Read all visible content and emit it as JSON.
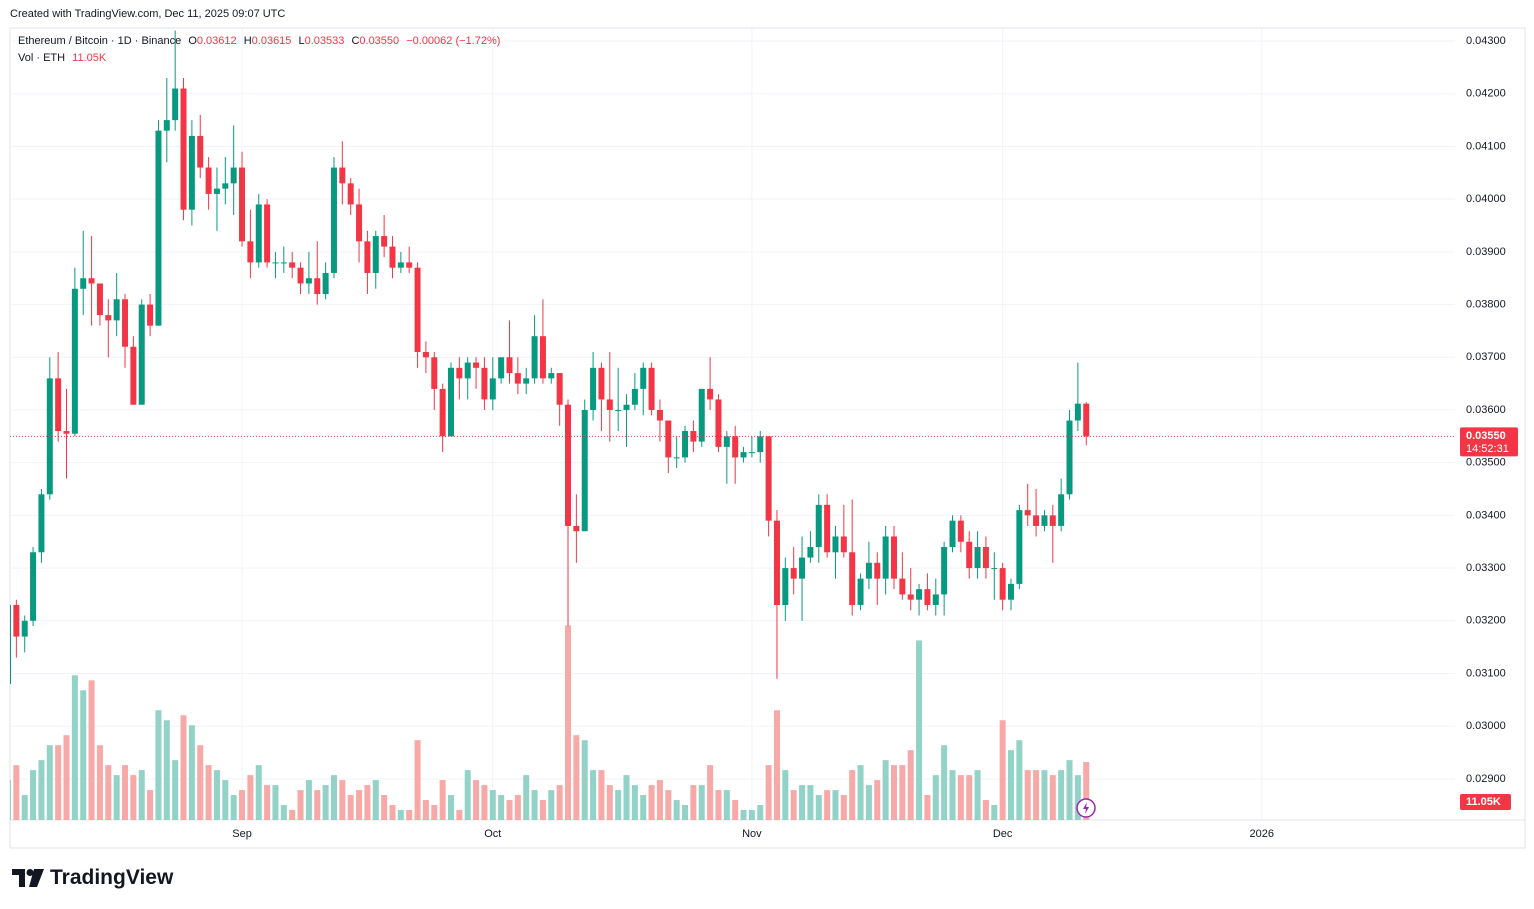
{
  "created": "Created with TradingView.com, Dec 11, 2025 09:07 UTC",
  "brand": "TradingView",
  "chart_data": {
    "type": "candlestick",
    "legend": {
      "symbol": "Ethereum / Bitcoin · 1D · Binance",
      "o_label": "O",
      "o": "0.03612",
      "h_label": "H",
      "h": "0.03615",
      "l_label": "L",
      "l": "0.03533",
      "c_label": "C",
      "c": "0.03550",
      "change": "−0.00062 (−1.72%)",
      "volume_title": "Vol · ETH"
    },
    "last_label": "0.03550",
    "countdown": "14:52:31",
    "volume_label": "11.05K",
    "up_color": "#089981",
    "down_color": "#f23645",
    "volume_up_color": "#92d2c7",
    "volume_down_color": "#f7a9a7",
    "grid": true,
    "xlim": [
      0,
      173
    ],
    "ylim": [
      0.02822,
      0.04321
    ],
    "volume_ylim": [
      0,
      40000
    ],
    "xticks": [
      {
        "value": 28,
        "label": "Sep"
      },
      {
        "value": 58,
        "label": "Oct"
      },
      {
        "value": 89,
        "label": "Nov"
      },
      {
        "value": 119,
        "label": "Dec"
      },
      {
        "value": 150,
        "label": "2026"
      }
    ],
    "yticks": [
      {
        "value": 0.029,
        "label": "0.02900"
      },
      {
        "value": 0.03,
        "label": "0.03000"
      },
      {
        "value": 0.031,
        "label": "0.03100"
      },
      {
        "value": 0.032,
        "label": "0.03200"
      },
      {
        "value": 0.033,
        "label": "0.03300"
      },
      {
        "value": 0.034,
        "label": "0.03400"
      },
      {
        "value": 0.035,
        "label": "0.03500"
      },
      {
        "value": 0.036,
        "label": "0.03600"
      },
      {
        "value": 0.037,
        "label": "0.03700"
      },
      {
        "value": 0.038,
        "label": "0.03800"
      },
      {
        "value": 0.039,
        "label": "0.03900"
      },
      {
        "value": 0.04,
        "label": "0.04000"
      },
      {
        "value": 0.041,
        "label": "0.04100"
      },
      {
        "value": 0.042,
        "label": "0.04200"
      },
      {
        "value": 0.043,
        "label": "0.04300"
      }
    ],
    "x": [
      0,
      1,
      2,
      3,
      4,
      5,
      6,
      7,
      8,
      9,
      10,
      11,
      12,
      13,
      14,
      15,
      16,
      17,
      18,
      19,
      20,
      21,
      22,
      23,
      24,
      25,
      26,
      27,
      28,
      29,
      30,
      31,
      32,
      33,
      34,
      35,
      36,
      37,
      38,
      39,
      40,
      41,
      42,
      43,
      44,
      45,
      46,
      47,
      48,
      49,
      50,
      51,
      52,
      53,
      54,
      55,
      56,
      57,
      58,
      59,
      60,
      61,
      62,
      63,
      64,
      65,
      66,
      67,
      68,
      69,
      70,
      71,
      72,
      73,
      74,
      75,
      76,
      77,
      78,
      79,
      80,
      81,
      82,
      83,
      84,
      85,
      86,
      87,
      88,
      89,
      90,
      91,
      92,
      93,
      94,
      95,
      96,
      97,
      98,
      99,
      100,
      101,
      102,
      103,
      104,
      105,
      106,
      107,
      108,
      109,
      110,
      111,
      112,
      113,
      114,
      115,
      116,
      117,
      118,
      119,
      120,
      121,
      122,
      123,
      124,
      125,
      126,
      127,
      128,
      129
    ],
    "open": [
      0.0308,
      0.0323,
      0.0317,
      0.032,
      0.0333,
      0.0344,
      0.0366,
      0.0356,
      0.03555,
      0.0383,
      0.0385,
      0.0384,
      0.0378,
      0.0377,
      0.0381,
      0.0372,
      0.0361,
      0.038,
      0.0376,
      0.0413,
      0.0415,
      0.0421,
      0.0398,
      0.0412,
      0.0406,
      0.0401,
      0.0402,
      0.0403,
      0.0406,
      0.0392,
      0.0388,
      0.0399,
      0.0388,
      0.0388,
      0.0388,
      0.0387,
      0.0384,
      0.0385,
      0.0382,
      0.0386,
      0.0406,
      0.0403,
      0.0399,
      0.0392,
      0.0386,
      0.0393,
      0.0391,
      0.0387,
      0.0388,
      0.0387,
      0.0371,
      0.037,
      0.0364,
      0.0355,
      0.0368,
      0.0366,
      0.0369,
      0.0368,
      0.0362,
      0.0366,
      0.037,
      0.0367,
      0.0365,
      0.0366,
      0.0374,
      0.0366,
      0.0367,
      0.0361,
      0.0338,
      0.0337,
      0.036,
      0.0368,
      0.0362,
      0.036,
      0.036,
      0.0361,
      0.0364,
      0.0368,
      0.036,
      0.0358,
      0.0351,
      0.0351,
      0.0356,
      0.0354,
      0.0364,
      0.0362,
      0.0353,
      0.0355,
      0.0351,
      0.0352,
      0.0352,
      0.0355,
      0.0339,
      0.0323,
      0.033,
      0.0328,
      0.0332,
      0.0334,
      0.0342,
      0.0333,
      0.0336,
      0.0333,
      0.0323,
      0.0328,
      0.0331,
      0.0328,
      0.0336,
      0.0328,
      0.0325,
      0.0324,
      0.0326,
      0.0323,
      0.0325,
      0.0334,
      0.0339,
      0.0335,
      0.033,
      0.0334,
      0.033,
      0.033,
      0.0324,
      0.0327,
      0.0341,
      0.034,
      0.0338,
      0.034,
      0.0338,
      0.0344,
      0.0358,
      0.03612
    ],
    "high": [
      0.0324,
      0.0324,
      0.0321,
      0.0334,
      0.0345,
      0.037,
      0.0371,
      0.0364,
      0.0387,
      0.0394,
      0.0393,
      0.0384,
      0.0381,
      0.0386,
      0.0382,
      0.0374,
      0.0381,
      0.0382,
      0.0415,
      0.0423,
      0.0432,
      0.0423,
      0.0415,
      0.0416,
      0.0408,
      0.0406,
      0.0408,
      0.0414,
      0.0409,
      0.0398,
      0.0401,
      0.04,
      0.039,
      0.0391,
      0.039,
      0.0388,
      0.039,
      0.0392,
      0.0388,
      0.0408,
      0.0411,
      0.0404,
      0.0402,
      0.0394,
      0.0394,
      0.0397,
      0.0393,
      0.039,
      0.0391,
      0.0388,
      0.0373,
      0.0371,
      0.0365,
      0.0369,
      0.037,
      0.037,
      0.037,
      0.037,
      0.037,
      0.037,
      0.0377,
      0.037,
      0.0368,
      0.0378,
      0.0381,
      0.0368,
      0.0367,
      0.0362,
      0.0344,
      0.0362,
      0.0371,
      0.0369,
      0.0371,
      0.0368,
      0.0363,
      0.0367,
      0.0369,
      0.0369,
      0.0362,
      0.0358,
      0.0355,
      0.0357,
      0.0358,
      0.0364,
      0.037,
      0.0363,
      0.0356,
      0.0357,
      0.0353,
      0.0355,
      0.0356,
      0.0355,
      0.0341,
      0.0332,
      0.0334,
      0.0336,
      0.0337,
      0.0344,
      0.0344,
      0.0338,
      0.0342,
      0.0343,
      0.0329,
      0.0335,
      0.0333,
      0.0338,
      0.0338,
      0.0333,
      0.033,
      0.0327,
      0.0329,
      0.0328,
      0.0335,
      0.034,
      0.034,
      0.0337,
      0.0337,
      0.0336,
      0.0333,
      0.0331,
      0.0328,
      0.0342,
      0.0346,
      0.0345,
      0.0341,
      0.0342,
      0.0347,
      0.036,
      0.0369,
      0.03615
    ],
    "low": [
      0.0306,
      0.0313,
      0.0314,
      0.0319,
      0.0331,
      0.0343,
      0.0354,
      0.0347,
      0.0355,
      0.0378,
      0.0376,
      0.0376,
      0.037,
      0.0374,
      0.0368,
      0.0361,
      0.0361,
      0.0374,
      0.0376,
      0.0407,
      0.0413,
      0.0396,
      0.0395,
      0.0404,
      0.0398,
      0.0394,
      0.0399,
      0.0397,
      0.0391,
      0.0385,
      0.0387,
      0.0387,
      0.0385,
      0.0386,
      0.0385,
      0.0382,
      0.0382,
      0.038,
      0.0381,
      0.0385,
      0.0399,
      0.0397,
      0.0388,
      0.0382,
      0.0383,
      0.0389,
      0.0385,
      0.0386,
      0.0386,
      0.0368,
      0.0367,
      0.036,
      0.0352,
      0.0355,
      0.0362,
      0.0362,
      0.0364,
      0.036,
      0.036,
      0.0365,
      0.0365,
      0.0363,
      0.0363,
      0.0365,
      0.0365,
      0.0365,
      0.0357,
      0.0319,
      0.0331,
      0.0337,
      0.0358,
      0.0356,
      0.0354,
      0.0356,
      0.0353,
      0.036,
      0.0359,
      0.0359,
      0.0354,
      0.0348,
      0.0349,
      0.035,
      0.0352,
      0.0353,
      0.036,
      0.0352,
      0.0346,
      0.0346,
      0.035,
      0.0351,
      0.035,
      0.0336,
      0.0309,
      0.032,
      0.0325,
      0.032,
      0.0331,
      0.0331,
      0.0332,
      0.0328,
      0.0332,
      0.0321,
      0.0322,
      0.0326,
      0.0323,
      0.0325,
      0.0326,
      0.0324,
      0.0322,
      0.0321,
      0.0322,
      0.0321,
      0.0321,
      0.0333,
      0.0333,
      0.0328,
      0.0328,
      0.0328,
      0.0324,
      0.0322,
      0.0322,
      0.0326,
      0.0338,
      0.0336,
      0.0337,
      0.0331,
      0.0337,
      0.0343,
      0.0356,
      0.03533
    ],
    "close": [
      0.0323,
      0.0317,
      0.032,
      0.0333,
      0.0344,
      0.0366,
      0.0356,
      0.03555,
      0.0383,
      0.0385,
      0.0384,
      0.0378,
      0.0377,
      0.0381,
      0.0372,
      0.0361,
      0.038,
      0.0376,
      0.0413,
      0.0415,
      0.0421,
      0.0398,
      0.0412,
      0.0406,
      0.0401,
      0.0402,
      0.0403,
      0.0406,
      0.0392,
      0.0388,
      0.0399,
      0.0388,
      0.0388,
      0.0388,
      0.0387,
      0.0384,
      0.0385,
      0.0382,
      0.0386,
      0.0406,
      0.0403,
      0.0399,
      0.0392,
      0.0386,
      0.0393,
      0.0391,
      0.0387,
      0.0388,
      0.0387,
      0.0371,
      0.037,
      0.0364,
      0.0355,
      0.0368,
      0.0366,
      0.0369,
      0.0368,
      0.0362,
      0.0366,
      0.037,
      0.0367,
      0.0365,
      0.0366,
      0.0374,
      0.0366,
      0.0367,
      0.0361,
      0.0338,
      0.0337,
      0.036,
      0.0368,
      0.0362,
      0.036,
      0.036,
      0.0361,
      0.0364,
      0.0368,
      0.036,
      0.0358,
      0.0351,
      0.0351,
      0.0356,
      0.0354,
      0.0364,
      0.0362,
      0.0353,
      0.0355,
      0.0351,
      0.0352,
      0.0352,
      0.0355,
      0.0339,
      0.0323,
      0.033,
      0.0328,
      0.0332,
      0.0334,
      0.0342,
      0.0333,
      0.0336,
      0.0333,
      0.0323,
      0.0328,
      0.0331,
      0.0328,
      0.0336,
      0.0328,
      0.0325,
      0.0324,
      0.0326,
      0.0323,
      0.0325,
      0.0334,
      0.0339,
      0.0335,
      0.033,
      0.0334,
      0.033,
      0.033,
      0.0324,
      0.0327,
      0.0341,
      0.034,
      0.0338,
      0.034,
      0.0338,
      0.0344,
      0.0358,
      0.03612,
      0.0355
    ],
    "volume": [
      7600,
      10450,
      4750,
      9500,
      11400,
      14250,
      14250,
      16150,
      27550,
      24700,
      26600,
      14250,
      10450,
      8550,
      10450,
      8550,
      9500,
      5700,
      20900,
      19000,
      11400,
      19950,
      18050,
      14250,
      10450,
      9500,
      7600,
      4750,
      5700,
      8550,
      10450,
      6650,
      6650,
      2850,
      1900,
      5700,
      7600,
      5700,
      6650,
      8550,
      7600,
      4750,
      5700,
      6650,
      7600,
      4750,
      2850,
      1900,
      1900,
      15200,
      3800,
      2850,
      7600,
      4750,
      1900,
      9500,
      7600,
      6650,
      5700,
      4750,
      3800,
      4750,
      8550,
      5700,
      3800,
      5700,
      6650,
      37050,
      16150,
      15200,
      9500,
      9500,
      6650,
      5700,
      8550,
      6650,
      4750,
      6650,
      7600,
      5700,
      3800,
      2850,
      6650,
      6650,
      10450,
      5700,
      5700,
      3800,
      1900,
      1900,
      2850,
      10450,
      20900,
      9500,
      5700,
      6650,
      6650,
      4750,
      5700,
      5700,
      4750,
      9500,
      10450,
      6650,
      7600,
      11400,
      10450,
      10450,
      13300,
      34200,
      4750,
      8550,
      14250,
      9500,
      8550,
      8550,
      9500,
      3800,
      2850,
      19000,
      13300,
      15200,
      9500,
      9500,
      9500,
      8550,
      9500,
      11400,
      8550,
      11050
    ]
  }
}
